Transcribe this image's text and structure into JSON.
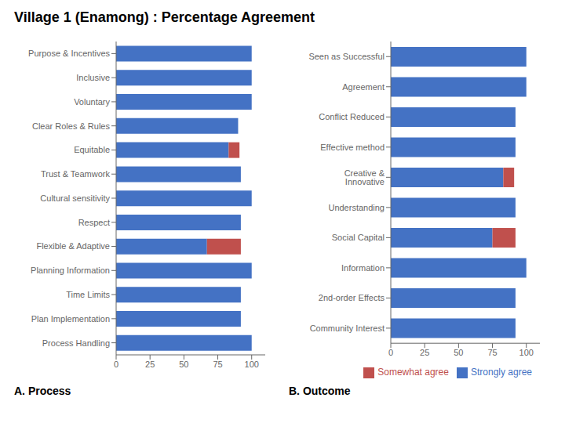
{
  "title": "Village 1 (Enamong) : Percentage Agreement",
  "chart_data": [
    {
      "type": "bar",
      "subtitle": "A. Process",
      "orientation": "horizontal",
      "stacked": true,
      "grid": false,
      "categories": [
        "Purpose & Incentives",
        "Inclusive",
        "Voluntary",
        "Clear Roles & Rules",
        "Equitable",
        "Trust & Teamwork",
        "Cultural sensitivity",
        "Respect",
        "Flexible & Adaptive",
        "Planning Information",
        "Time Limits",
        "Plan Implementation",
        "Process Handling"
      ],
      "series": [
        {
          "name": "Strongly agree",
          "color": "#4472C4",
          "values": [
            100,
            100,
            100,
            90,
            83,
            92,
            100,
            92,
            67,
            100,
            92,
            92,
            100
          ]
        },
        {
          "name": "Somewhat agree",
          "color": "#C0504D",
          "values": [
            0,
            0,
            0,
            0,
            8,
            0,
            0,
            0,
            25,
            0,
            0,
            0,
            0
          ]
        }
      ],
      "xlim": [
        0,
        110
      ],
      "xticks": [
        0,
        25,
        50,
        75,
        100
      ]
    },
    {
      "type": "bar",
      "subtitle": "B. Outcome",
      "orientation": "horizontal",
      "stacked": true,
      "grid": false,
      "legend": "lower right",
      "categories": [
        "Seen as Successful",
        "Agreement",
        "Conflict Reduced",
        "Effective method",
        "Creative & Innovative",
        "Understanding",
        "Social Capital",
        "Information",
        "2nd-order Effects",
        "Community Interest"
      ],
      "series": [
        {
          "name": "Strongly agree",
          "color": "#4472C4",
          "values": [
            100,
            100,
            92,
            92,
            83,
            92,
            75,
            100,
            92,
            92
          ]
        },
        {
          "name": "Somewhat agree",
          "color": "#C0504D",
          "values": [
            0,
            0,
            0,
            0,
            8,
            0,
            17,
            0,
            0,
            0
          ]
        }
      ],
      "xlim": [
        0,
        110
      ],
      "xticks": [
        0,
        25,
        50,
        75,
        100
      ]
    }
  ]
}
